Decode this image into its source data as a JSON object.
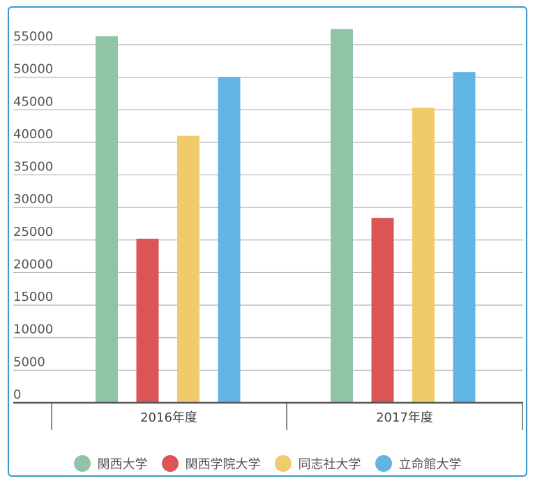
{
  "chart_data": {
    "type": "bar",
    "categories": [
      "2016年度",
      "2017年度"
    ],
    "series": [
      {
        "name": "関西大学",
        "color": "#8fc4a6",
        "values": [
          56300,
          57400
        ]
      },
      {
        "name": "関西学院大学",
        "color": "#db5557",
        "values": [
          25200,
          28400
        ]
      },
      {
        "name": "同志社大学",
        "color": "#efcb6b",
        "values": [
          41000,
          45300
        ]
      },
      {
        "name": "立命館大学",
        "color": "#60b5e5",
        "values": [
          50000,
          50800
        ]
      }
    ],
    "yticks": [
      "0",
      "5000",
      "10000",
      "15000",
      "20000",
      "25000",
      "30000",
      "35000",
      "40000",
      "45000",
      "50000",
      "55000"
    ],
    "ylim": [
      0,
      55000
    ],
    "grid": true,
    "legend_position": "bottom"
  }
}
